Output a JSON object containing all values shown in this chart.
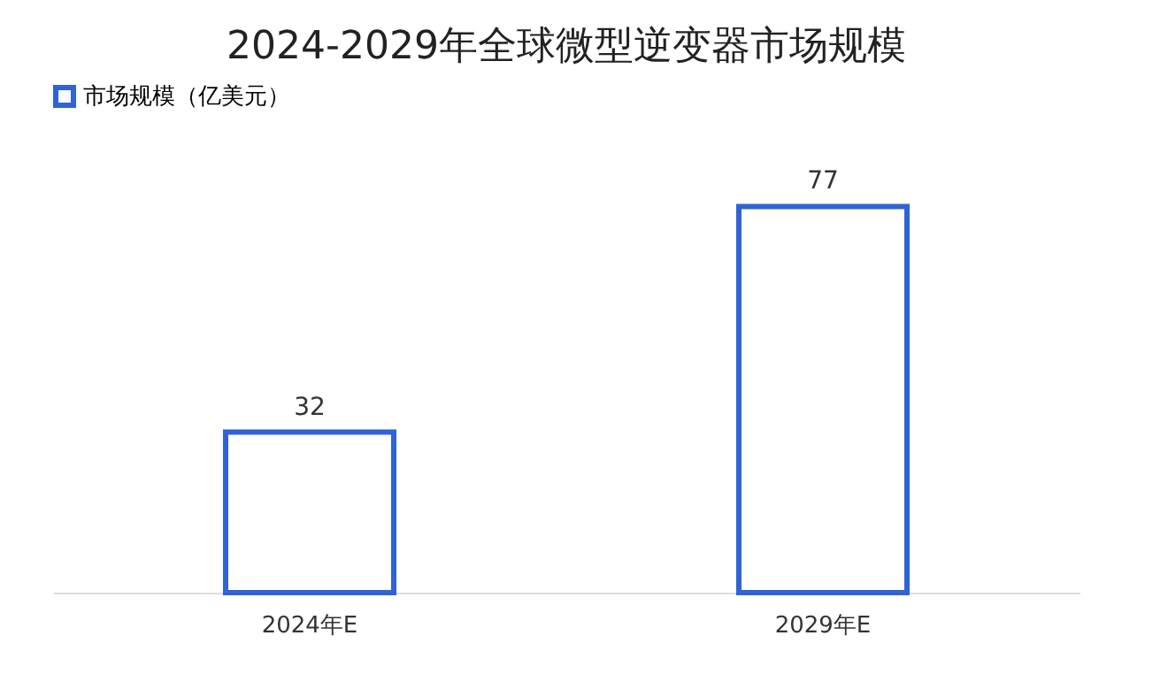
{
  "chart_data": {
    "type": "bar",
    "title": "2024-2029年全球微型逆变器市场规模",
    "categories": [
      "2024年E",
      "2029年E"
    ],
    "series": [
      {
        "name": "市场规模（亿美元）",
        "color": "#2f63d6",
        "values": [
          32,
          77
        ]
      }
    ],
    "data_labels": true,
    "legend": "top",
    "grid": false
  }
}
